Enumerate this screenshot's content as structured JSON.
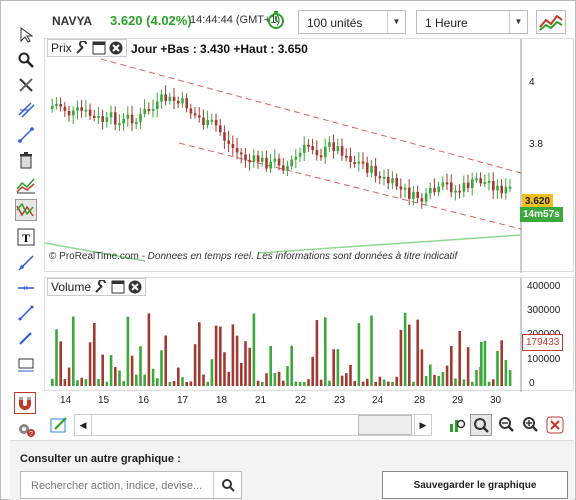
{
  "header": {
    "symbol": "NAVYA",
    "price": "3.620 (4.02%)",
    "time": "14:44:44 (GMT+1)",
    "quantity_select": "100 unités",
    "timeframe_select": "1 Heure"
  },
  "price_panel": {
    "title": "Prix",
    "indicator_text": "Jour +Bas : 3.430 +Haut : 3.650",
    "watermark_brand": "© ProRealTime.com",
    "watermark_text": " - Donnees en temps reel. Les informations sont données à titre indicatif",
    "y_ticks": [
      "4",
      "3.8"
    ],
    "current_price_tag": "3.620",
    "countdown_tag": "14m57s"
  },
  "volume_panel": {
    "title": "Volume",
    "y_ticks": [
      "400000",
      "300000",
      "200000",
      "100000",
      "0"
    ],
    "current_volume_tag": "179433"
  },
  "x_axis": {
    "labels": [
      "14",
      "15",
      "16",
      "17",
      "18",
      "21",
      "22",
      "23",
      "24",
      "28",
      "29",
      "30"
    ]
  },
  "bottom": {
    "consult_label": "Consulter un autre graphique :",
    "search_placeholder": "Rechercher action, indice, devise...",
    "save_button": "Sauvegarder le graphique"
  },
  "colors": {
    "up": "#3aa83a",
    "down": "#a33a32",
    "price_tag_bg": "#f0c020",
    "countdown_bg": "#3aa83a",
    "volume_tag": "#c0392b"
  }
}
